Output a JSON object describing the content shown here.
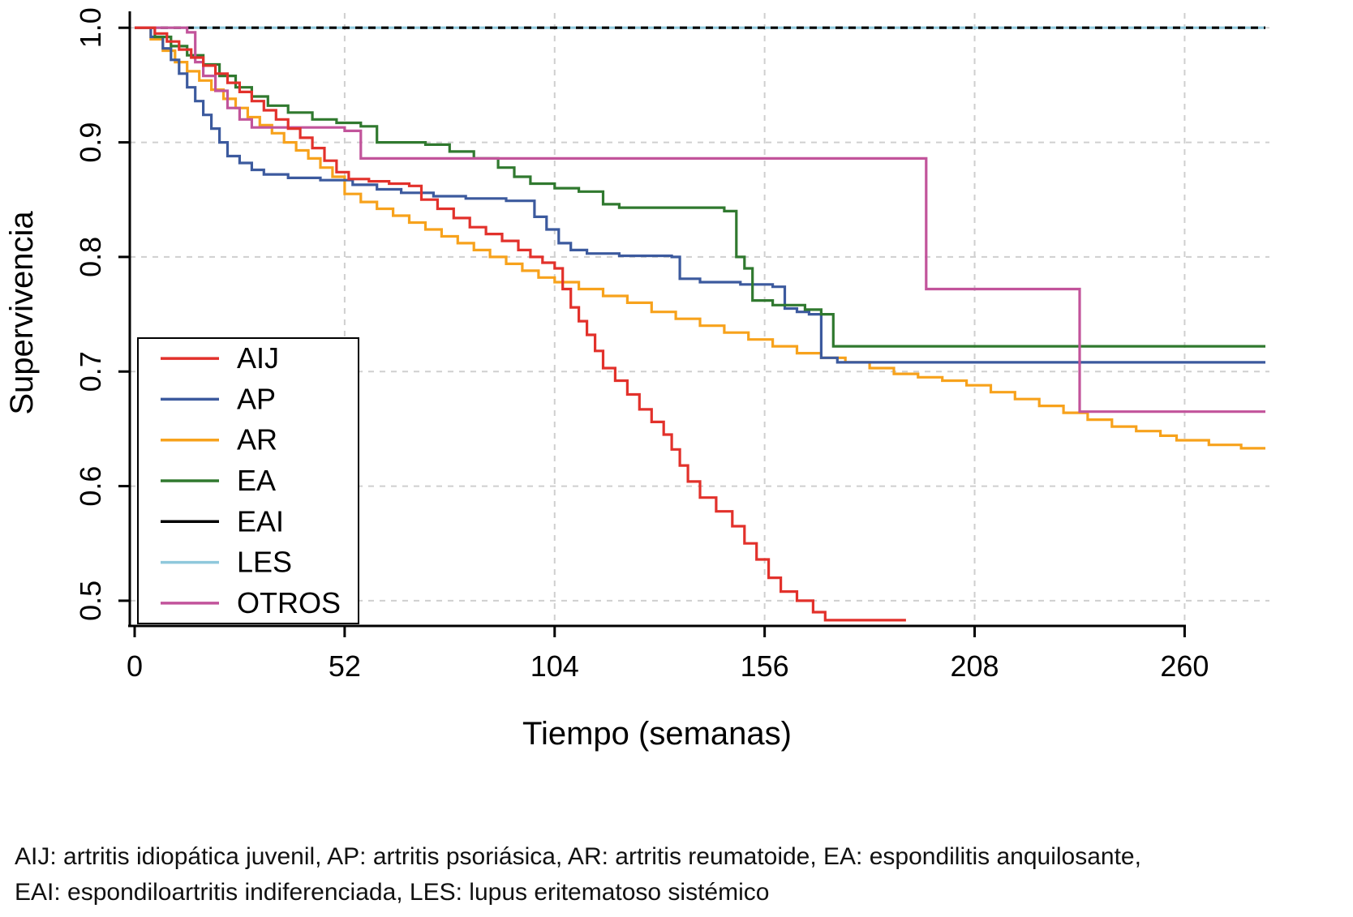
{
  "figure": {
    "caption_line1": "AIJ: artritis idiopática juvenil, AP: artritis psoriásica, AR: artritis reumatoide, EA: espondilitis anquilosante,",
    "caption_line2": "EAI: espondiloartritis indiferenciada, LES: lupus eritematoso sistémico"
  },
  "chart_data": {
    "type": "line",
    "subtype": "kaplan-meier-step-survival",
    "title": "",
    "xlabel": "Tiempo (semanas)",
    "ylabel": "Supervivencia",
    "xlim": [
      0,
      280
    ],
    "ylim": [
      0.478,
      1.003
    ],
    "x_ticks": [
      0,
      52,
      104,
      156,
      208,
      260
    ],
    "y_ticks": [
      0.5,
      0.6,
      0.7,
      0.8,
      0.9,
      1.0
    ],
    "y_tick_labels": [
      "0.5",
      "0.6",
      "0.7",
      "0.8",
      "0.9",
      "1.0"
    ],
    "grid": true,
    "grid_color": "#cfcfcf",
    "axis_color": "#000000",
    "legend_position": "inside-bottom-left",
    "legend": [
      {
        "label": "AIJ",
        "color": "#e2312b"
      },
      {
        "label": "AP",
        "color": "#3c5a9e"
      },
      {
        "label": "AR",
        "color": "#f7a21c"
      },
      {
        "label": "EA",
        "color": "#30792f"
      },
      {
        "label": "EAI",
        "color": "#000000"
      },
      {
        "label": "LES",
        "color": "#8fc8dc"
      },
      {
        "label": "OTROS",
        "color": "#c2549b"
      }
    ],
    "series": [
      {
        "name": "LES",
        "color": "#8fc8dc",
        "dash": "",
        "end": 280,
        "points": [
          [
            0,
            1.0
          ]
        ]
      },
      {
        "name": "EAI",
        "color": "#000000",
        "dash": "9 7",
        "end": 280,
        "points": [
          [
            0,
            1.0
          ]
        ]
      },
      {
        "name": "AR",
        "color": "#f7a21c",
        "dash": "",
        "end": 280,
        "points": [
          [
            0,
            1.0
          ],
          [
            4,
            0.99
          ],
          [
            7,
            0.98
          ],
          [
            10,
            0.97
          ],
          [
            13,
            0.962
          ],
          [
            16,
            0.954
          ],
          [
            19,
            0.946
          ],
          [
            22,
            0.938
          ],
          [
            25,
            0.93
          ],
          [
            28,
            0.922
          ],
          [
            31,
            0.915
          ],
          [
            34,
            0.908
          ],
          [
            37,
            0.9
          ],
          [
            40,
            0.893
          ],
          [
            43,
            0.886
          ],
          [
            46,
            0.878
          ],
          [
            49,
            0.87
          ],
          [
            52,
            0.855
          ],
          [
            56,
            0.848
          ],
          [
            60,
            0.842
          ],
          [
            64,
            0.836
          ],
          [
            68,
            0.83
          ],
          [
            72,
            0.824
          ],
          [
            76,
            0.818
          ],
          [
            80,
            0.812
          ],
          [
            84,
            0.806
          ],
          [
            88,
            0.8
          ],
          [
            92,
            0.794
          ],
          [
            96,
            0.788
          ],
          [
            100,
            0.782
          ],
          [
            104,
            0.778
          ],
          [
            110,
            0.772
          ],
          [
            116,
            0.766
          ],
          [
            122,
            0.76
          ],
          [
            128,
            0.752
          ],
          [
            134,
            0.746
          ],
          [
            140,
            0.74
          ],
          [
            146,
            0.734
          ],
          [
            152,
            0.728
          ],
          [
            158,
            0.722
          ],
          [
            164,
            0.716
          ],
          [
            170,
            0.712
          ],
          [
            176,
            0.708
          ],
          [
            182,
            0.703
          ],
          [
            188,
            0.698
          ],
          [
            194,
            0.695
          ],
          [
            200,
            0.692
          ],
          [
            206,
            0.688
          ],
          [
            212,
            0.682
          ],
          [
            218,
            0.676
          ],
          [
            224,
            0.67
          ],
          [
            230,
            0.664
          ],
          [
            236,
            0.658
          ],
          [
            242,
            0.652
          ],
          [
            248,
            0.648
          ],
          [
            254,
            0.644
          ],
          [
            258,
            0.64
          ],
          [
            266,
            0.636
          ],
          [
            274,
            0.633
          ]
        ]
      },
      {
        "name": "AP",
        "color": "#3c5a9e",
        "dash": "",
        "end": 280,
        "points": [
          [
            0,
            1.0
          ],
          [
            4,
            0.992
          ],
          [
            7,
            0.982
          ],
          [
            9,
            0.972
          ],
          [
            11,
            0.96
          ],
          [
            13,
            0.948
          ],
          [
            15,
            0.936
          ],
          [
            17,
            0.924
          ],
          [
            19,
            0.912
          ],
          [
            21,
            0.9
          ],
          [
            23,
            0.888
          ],
          [
            26,
            0.882
          ],
          [
            29,
            0.876
          ],
          [
            32,
            0.872
          ],
          [
            38,
            0.869
          ],
          [
            46,
            0.867
          ],
          [
            54,
            0.863
          ],
          [
            60,
            0.859
          ],
          [
            66,
            0.856
          ],
          [
            74,
            0.853
          ],
          [
            82,
            0.851
          ],
          [
            92,
            0.849
          ],
          [
            99,
            0.835
          ],
          [
            102,
            0.824
          ],
          [
            105,
            0.812
          ],
          [
            108,
            0.806
          ],
          [
            112,
            0.803
          ],
          [
            120,
            0.801
          ],
          [
            133,
            0.8
          ],
          [
            135,
            0.781
          ],
          [
            140,
            0.778
          ],
          [
            150,
            0.776
          ],
          [
            158,
            0.774
          ],
          [
            161,
            0.755
          ],
          [
            164,
            0.752
          ],
          [
            167,
            0.75
          ],
          [
            170,
            0.712
          ],
          [
            174,
            0.708
          ]
        ]
      },
      {
        "name": "EA",
        "color": "#30792f",
        "dash": "",
        "end": 280,
        "points": [
          [
            0,
            1.0
          ],
          [
            5,
            0.992
          ],
          [
            9,
            0.984
          ],
          [
            13,
            0.976
          ],
          [
            17,
            0.968
          ],
          [
            21,
            0.958
          ],
          [
            25,
            0.948
          ],
          [
            29,
            0.94
          ],
          [
            33,
            0.932
          ],
          [
            38,
            0.926
          ],
          [
            44,
            0.92
          ],
          [
            50,
            0.917
          ],
          [
            56,
            0.914
          ],
          [
            60,
            0.9
          ],
          [
            72,
            0.898
          ],
          [
            78,
            0.892
          ],
          [
            84,
            0.886
          ],
          [
            90,
            0.878
          ],
          [
            94,
            0.87
          ],
          [
            98,
            0.864
          ],
          [
            104,
            0.86
          ],
          [
            110,
            0.857
          ],
          [
            116,
            0.846
          ],
          [
            120,
            0.843
          ],
          [
            146,
            0.84
          ],
          [
            149,
            0.8
          ],
          [
            151,
            0.79
          ],
          [
            153,
            0.762
          ],
          [
            158,
            0.758
          ],
          [
            166,
            0.754
          ],
          [
            170,
            0.75
          ],
          [
            173,
            0.722
          ]
        ]
      },
      {
        "name": "OTROS",
        "color": "#c2549b",
        "dash": "",
        "end": 280,
        "points": [
          [
            0,
            1.0
          ],
          [
            13,
            0.996
          ],
          [
            15,
            0.97
          ],
          [
            17,
            0.958
          ],
          [
            20,
            0.945
          ],
          [
            23,
            0.93
          ],
          [
            26,
            0.92
          ],
          [
            29,
            0.913
          ],
          [
            52,
            0.91
          ],
          [
            56,
            0.886
          ],
          [
            195,
            0.886
          ],
          [
            196,
            0.772
          ],
          [
            233,
            0.772
          ],
          [
            234,
            0.665
          ]
        ]
      },
      {
        "name": "AIJ",
        "color": "#e2312b",
        "dash": "",
        "end": 191,
        "points": [
          [
            0,
            1.0
          ],
          [
            5,
            0.995
          ],
          [
            8,
            0.988
          ],
          [
            11,
            0.981
          ],
          [
            14,
            0.974
          ],
          [
            17,
            0.967
          ],
          [
            20,
            0.96
          ],
          [
            23,
            0.952
          ],
          [
            26,
            0.944
          ],
          [
            29,
            0.936
          ],
          [
            32,
            0.928
          ],
          [
            35,
            0.92
          ],
          [
            38,
            0.912
          ],
          [
            41,
            0.904
          ],
          [
            44,
            0.895
          ],
          [
            47,
            0.884
          ],
          [
            50,
            0.874
          ],
          [
            53,
            0.868
          ],
          [
            58,
            0.866
          ],
          [
            63,
            0.864
          ],
          [
            68,
            0.862
          ],
          [
            71,
            0.85
          ],
          [
            75,
            0.842
          ],
          [
            79,
            0.834
          ],
          [
            83,
            0.826
          ],
          [
            87,
            0.82
          ],
          [
            91,
            0.814
          ],
          [
            95,
            0.806
          ],
          [
            98,
            0.8
          ],
          [
            101,
            0.795
          ],
          [
            104,
            0.79
          ],
          [
            106,
            0.772
          ],
          [
            108,
            0.756
          ],
          [
            110,
            0.744
          ],
          [
            112,
            0.732
          ],
          [
            114,
            0.718
          ],
          [
            116,
            0.703
          ],
          [
            119,
            0.692
          ],
          [
            122,
            0.68
          ],
          [
            125,
            0.667
          ],
          [
            128,
            0.656
          ],
          [
            131,
            0.645
          ],
          [
            133,
            0.632
          ],
          [
            135,
            0.618
          ],
          [
            137,
            0.604
          ],
          [
            140,
            0.59
          ],
          [
            144,
            0.578
          ],
          [
            148,
            0.565
          ],
          [
            151,
            0.55
          ],
          [
            154,
            0.536
          ],
          [
            157,
            0.52
          ],
          [
            160,
            0.508
          ],
          [
            164,
            0.5
          ],
          [
            168,
            0.49
          ],
          [
            171,
            0.483
          ]
        ]
      }
    ]
  }
}
